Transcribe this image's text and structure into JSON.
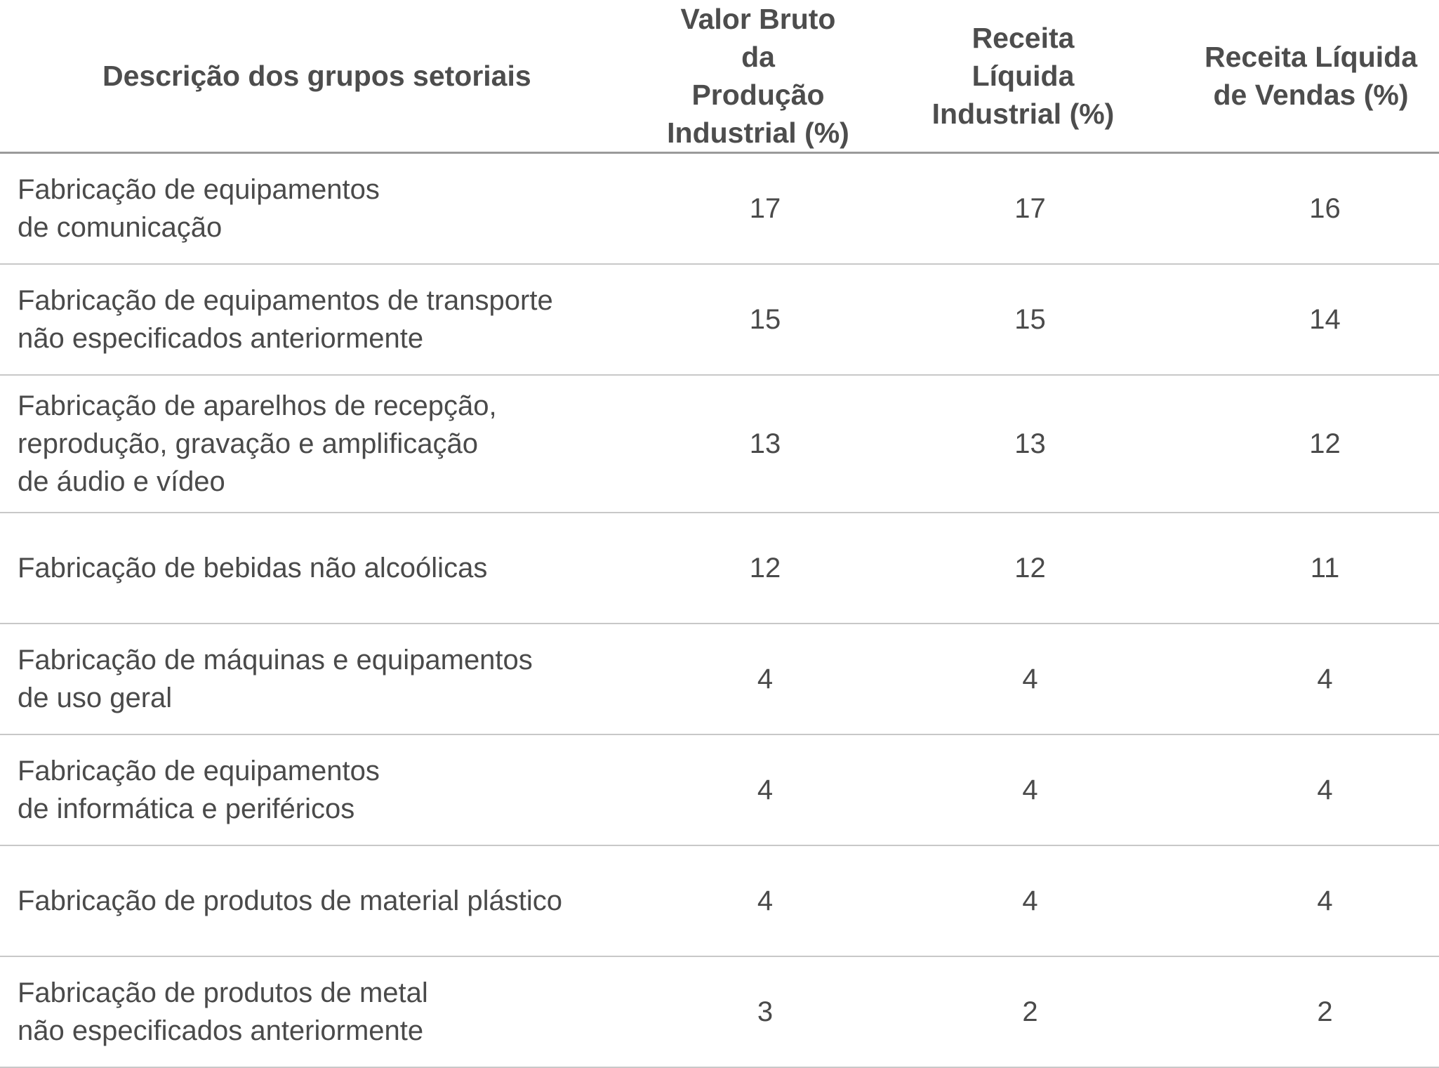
{
  "table": {
    "headers": {
      "description": "Descrição dos grupos setoriais",
      "valor_bruto": "Valor Bruto da\nProdução\nIndustrial (%)",
      "receita_liquida_industrial": "Receita Líquida\nIndustrial (%)",
      "receita_liquida_vendas": "Receita Líquida\nde Vendas (%)"
    },
    "rows": [
      {
        "description": "Fabricação de equipamentos\nde comunicação",
        "valor_bruto": "17",
        "receita_liquida_industrial": "17",
        "receita_liquida_vendas": "16"
      },
      {
        "description": "Fabricação  de  equipamentos de transporte\nnão especificados anteriormente",
        "valor_bruto": "15",
        "receita_liquida_industrial": "15",
        "receita_liquida_vendas": "14"
      },
      {
        "description": "Fabricação de aparelhos de recepção,\nreprodução,  gravação e amplificação\nde áudio e vídeo",
        "valor_bruto": "13",
        "receita_liquida_industrial": "13",
        "receita_liquida_vendas": "12"
      },
      {
        "description": "Fabricação de bebidas não alcoólicas",
        "valor_bruto": "12",
        "receita_liquida_industrial": "12",
        "receita_liquida_vendas": "11"
      },
      {
        "description": "Fabricação de máquinas e equipamentos\nde uso geral",
        "valor_bruto": "4",
        "receita_liquida_industrial": "4",
        "receita_liquida_vendas": "4"
      },
      {
        "description": "Fabricação de equipamentos\nde informática e periféricos",
        "valor_bruto": "4",
        "receita_liquida_industrial": "4",
        "receita_liquida_vendas": "4"
      },
      {
        "description": "Fabricação de produtos de material plástico",
        "valor_bruto": "4",
        "receita_liquida_industrial": "4",
        "receita_liquida_vendas": "4"
      },
      {
        "description": "Fabricação de produtos de metal\nnão especificados anteriormente",
        "valor_bruto": "3",
        "receita_liquida_industrial": "2",
        "receita_liquida_vendas": "2"
      }
    ]
  },
  "colors": {
    "text": "#4a4a4a",
    "header_rule": "#9a9a9a",
    "row_rule": "#c8c8c8",
    "background": "#ffffff"
  }
}
